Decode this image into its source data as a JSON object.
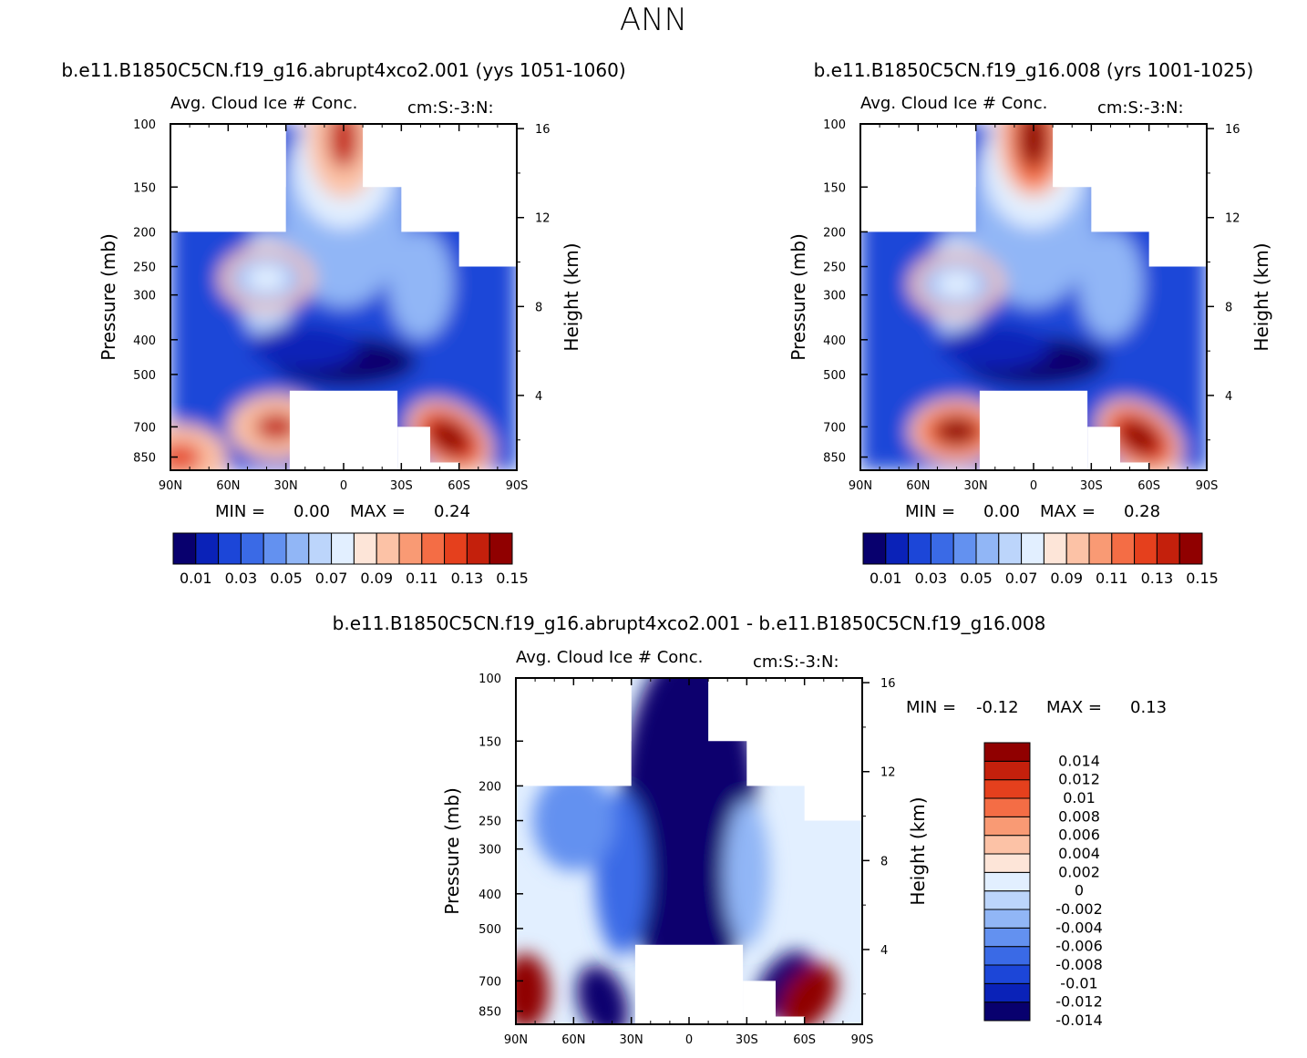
{
  "figure": {
    "title": "ANN",
    "panels": [
      {
        "case_title": "b.e11.B1850C5CN.f19_g16.abrupt4xco2.001 (yys 1051-1060)",
        "variable": "Avg. Cloud Ice # Conc.",
        "units": "cm:S:-3:N:",
        "ylabel": "Pressure (mb)",
        "ylabel_right": "Height (km)",
        "min_label": "MIN =",
        "min_value": "0.00",
        "max_label": "MAX =",
        "max_value": "0.24"
      },
      {
        "case_title": "b.e11.B1850C5CN.f19_g16.008 (yrs 1001-1025)",
        "variable": "Avg. Cloud Ice # Conc.",
        "units": "cm:S:-3:N:",
        "ylabel": "Pressure (mb)",
        "ylabel_right": "Height (km)",
        "min_label": "MIN =",
        "min_value": "0.00",
        "max_label": "MAX =",
        "max_value": "0.28"
      },
      {
        "case_title": "b.e11.B1850C5CN.f19_g16.abrupt4xco2.001 - b.e11.B1850C5CN.f19_g16.008",
        "variable": "Avg. Cloud Ice # Conc.",
        "units": "cm:S:-3:N:",
        "ylabel": "Pressure (mb)",
        "ylabel_right": "Height (km)",
        "min_label": "MIN =",
        "min_value": "-0.12",
        "max_label": "MAX =",
        "max_value": "0.13"
      }
    ]
  },
  "chart_data": [
    {
      "type": "heatmap",
      "title": "Avg. Cloud Ice # Conc.",
      "xlabel": "",
      "ylabel": "Pressure (mb)",
      "ylabel_right": "Height (km)",
      "x_ticks": [
        "90N",
        "60N",
        "30N",
        "0",
        "30S",
        "60S",
        "90S"
      ],
      "y_ticks": [
        "100",
        "150",
        "200",
        "250",
        "300",
        "400",
        "500",
        "700",
        "850"
      ],
      "y_right_ticks": [
        "16",
        "12",
        "8",
        "4"
      ],
      "ylim": [
        100,
        925
      ],
      "min": 0.0,
      "max": 0.24,
      "colorbar_ticks": [
        "0.01",
        "0.03",
        "0.05",
        "0.07",
        "0.09",
        "0.11",
        "0.13",
        "0.15"
      ],
      "features": [
        {
          "name": "tropical upper-level maximum",
          "lat": 0,
          "pressure": 110,
          "value": 0.13
        },
        {
          "name": "NH low-level maximum",
          "lat": 35,
          "pressure": 700,
          "value": 0.13
        },
        {
          "name": "NH high-latitude low-level maximum",
          "lat": 85,
          "pressure": 850,
          "value": 0.12
        },
        {
          "name": "SH low-level maximum",
          "lat": -55,
          "pressure": 750,
          "value": 0.16
        },
        {
          "name": "NH upper-level secondary maximum",
          "lat": 40,
          "pressure": 270,
          "value": 0.07
        }
      ]
    },
    {
      "type": "heatmap",
      "title": "Avg. Cloud Ice # Conc.",
      "xlabel": "",
      "ylabel": "Pressure (mb)",
      "ylabel_right": "Height (km)",
      "x_ticks": [
        "90N",
        "60N",
        "30N",
        "0",
        "30S",
        "60S",
        "90S"
      ],
      "y_ticks": [
        "100",
        "150",
        "200",
        "250",
        "300",
        "400",
        "500",
        "700",
        "850"
      ],
      "y_right_ticks": [
        "16",
        "12",
        "8",
        "4"
      ],
      "ylim": [
        100,
        925
      ],
      "min": 0.0,
      "max": 0.28,
      "colorbar_ticks": [
        "0.01",
        "0.03",
        "0.05",
        "0.07",
        "0.09",
        "0.11",
        "0.13",
        "0.15"
      ],
      "features": [
        {
          "name": "tropical upper-level maximum",
          "lat": 0,
          "pressure": 110,
          "value": 0.15
        },
        {
          "name": "NH low-level maximum",
          "lat": 40,
          "pressure": 720,
          "value": 0.15
        },
        {
          "name": "SH low-level maximum",
          "lat": -55,
          "pressure": 750,
          "value": 0.17
        },
        {
          "name": "NH upper-level secondary maximum",
          "lat": 40,
          "pressure": 280,
          "value": 0.07
        }
      ]
    },
    {
      "type": "heatmap",
      "title": "Avg. Cloud Ice # Conc.",
      "xlabel": "",
      "ylabel": "Pressure (mb)",
      "ylabel_right": "Height (km)",
      "x_ticks": [
        "90N",
        "60N",
        "30N",
        "0",
        "30S",
        "60S",
        "90S"
      ],
      "y_ticks": [
        "100",
        "150",
        "200",
        "250",
        "300",
        "400",
        "500",
        "700",
        "850"
      ],
      "y_right_ticks": [
        "16",
        "12",
        "8",
        "4"
      ],
      "ylim": [
        100,
        925
      ],
      "min": -0.12,
      "max": 0.13,
      "colorbar_ticks": [
        "0.014",
        "0.012",
        "0.01",
        "0.008",
        "0.006",
        "0.004",
        "0.002",
        "0",
        "-0.002",
        "-0.004",
        "-0.006",
        "-0.008",
        "-0.01",
        "-0.012",
        "-0.014"
      ],
      "features": [
        {
          "name": "tropical upper-level decrease",
          "lat": 0,
          "pressure": 200,
          "value": -0.015
        },
        {
          "name": "NH high-latitude low-level increase",
          "lat": 85,
          "pressure": 750,
          "value": 0.015
        },
        {
          "name": "NH mid-latitude low-level decrease",
          "lat": 45,
          "pressure": 800,
          "value": -0.015
        },
        {
          "name": "SH low-level decrease",
          "lat": -50,
          "pressure": 720,
          "value": -0.015
        },
        {
          "name": "SH low-level increase",
          "lat": -62,
          "pressure": 780,
          "value": 0.015
        }
      ]
    }
  ],
  "palette_main": [
    "#08006e",
    "#0a22b8",
    "#1c46d8",
    "#3a6ae6",
    "#6391f0",
    "#91b6f6",
    "#bcd5fb",
    "#e2efff",
    "#fde5d8",
    "#fcc2a6",
    "#f99a74",
    "#f46d45",
    "#e5401d",
    "#c4200c",
    "#900000"
  ],
  "palette_diff": [
    "#08006e",
    "#0a22b8",
    "#1c46d8",
    "#3a6ae6",
    "#6391f0",
    "#91b6f6",
    "#bcd5fb",
    "#e2efff",
    "#fde5d8",
    "#fcc2a6",
    "#f99a74",
    "#f46d45",
    "#e5401d",
    "#c4200c",
    "#900000"
  ]
}
